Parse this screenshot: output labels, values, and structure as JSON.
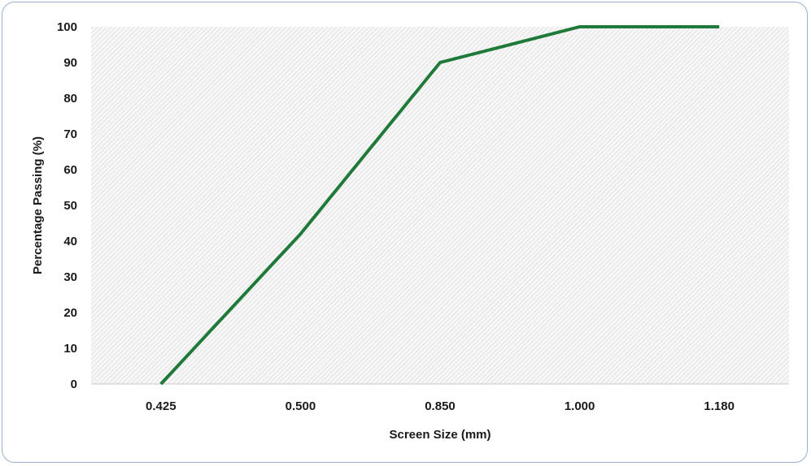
{
  "chart_data": {
    "type": "line",
    "categories": [
      "0.425",
      "0.500",
      "0.850",
      "1.000",
      "1.180"
    ],
    "series": [
      {
        "values": [
          0,
          42,
          90,
          100,
          100
        ],
        "color": "#1f7a3a"
      }
    ],
    "xlabel": "Screen Size (mm)",
    "ylabel": "Percentage Passing (%)",
    "ylim": [
      0,
      100
    ],
    "yticks": [
      "0",
      "10",
      "20",
      "30",
      "40",
      "50",
      "60",
      "70",
      "80",
      "90",
      "100"
    ],
    "grid": false,
    "legend": "none",
    "plot_background": "hatched light gray"
  }
}
